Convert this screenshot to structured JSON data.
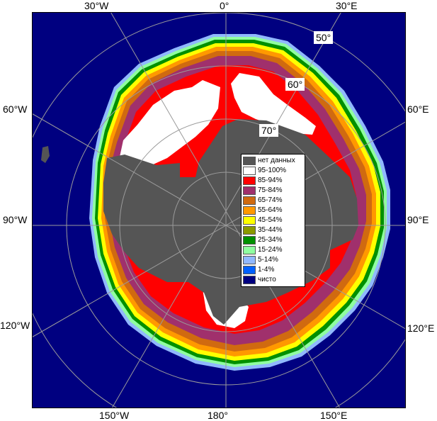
{
  "map": {
    "background_color": "#000080",
    "land_color": "#555555",
    "graticule_color": "#9a9a9a"
  },
  "longitude_labels": {
    "top_30w": "30°W",
    "top_0": "0°",
    "top_30e": "30°E",
    "left_60w": "60°W",
    "right_60e": "60°E",
    "left_90w": "90°W",
    "right_90e": "90°E",
    "left_120w": "120°W",
    "right_120e": "120°E",
    "bottom_150w": "150°W",
    "bottom_180": "180°",
    "bottom_150e": "150°E"
  },
  "latitude_labels": {
    "lat_50": "50°",
    "lat_60": "60°",
    "lat_70": "70°"
  },
  "legend": {
    "items": [
      {
        "label": "нет данных",
        "color": "#555555"
      },
      {
        "label": "95-100%",
        "color": "#ffffff"
      },
      {
        "label": "85-94%",
        "color": "#ff0000"
      },
      {
        "label": "75-84%",
        "color": "#a0306c"
      },
      {
        "label": "65-74%",
        "color": "#d06a10"
      },
      {
        "label": "55-64%",
        "color": "#ff9900"
      },
      {
        "label": "45-54%",
        "color": "#ffff00"
      },
      {
        "label": "35-44%",
        "color": "#8c9a00"
      },
      {
        "label": "25-34%",
        "color": "#009000"
      },
      {
        "label": "15-24%",
        "color": "#90ffa0"
      },
      {
        "label": "5-14%",
        "color": "#90b8ff"
      },
      {
        "label": "1-4%",
        "color": "#0060ff"
      },
      {
        "label": "чисто",
        "color": "#000080"
      }
    ]
  }
}
